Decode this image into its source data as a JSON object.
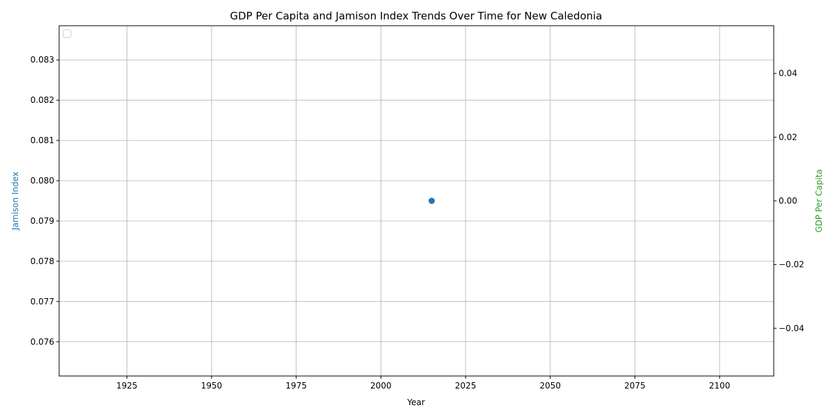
{
  "chart_data": {
    "type": "scatter",
    "title": "GDP Per Capita and Jamison Index Trends Over Time for New Caledonia",
    "xlabel": "Year",
    "ylabel_left": "Jamison Index",
    "ylabel_right": "GDP Per Capita",
    "xlim": [
      1905,
      2116
    ],
    "ylim_left": [
      0.07515,
      0.08385
    ],
    "ylim_right": [
      -0.055,
      0.055
    ],
    "x_ticks": [
      1925,
      1950,
      1975,
      2000,
      2025,
      2050,
      2075,
      2100,
      2125
    ],
    "y_left_ticks": [
      0.076,
      0.077,
      0.078,
      0.079,
      0.08,
      0.081,
      0.082,
      0.083
    ],
    "y_left_tick_labels": [
      "0.076",
      "0.077",
      "0.078",
      "0.079",
      "0.080",
      "0.081",
      "0.082",
      "0.083"
    ],
    "y_right_ticks": [
      -0.04,
      -0.02,
      0.0,
      0.02,
      0.04
    ],
    "y_right_tick_labels": [
      "−0.04",
      "−0.02",
      "0.00",
      "0.02",
      "0.04"
    ],
    "grid": true,
    "legend": "top-left (empty)",
    "series": [
      {
        "axis": "left",
        "color": "#1f77b4",
        "x": [
          2015
        ],
        "y": [
          0.0795
        ]
      },
      {
        "axis": "right",
        "color": "#2ca02c",
        "x": [],
        "y": []
      }
    ],
    "colors": {
      "left_axis_label": "#1f77b4",
      "right_axis_label": "#2ca02c",
      "grid": "#b0b0b0",
      "axes": "#000000"
    }
  }
}
